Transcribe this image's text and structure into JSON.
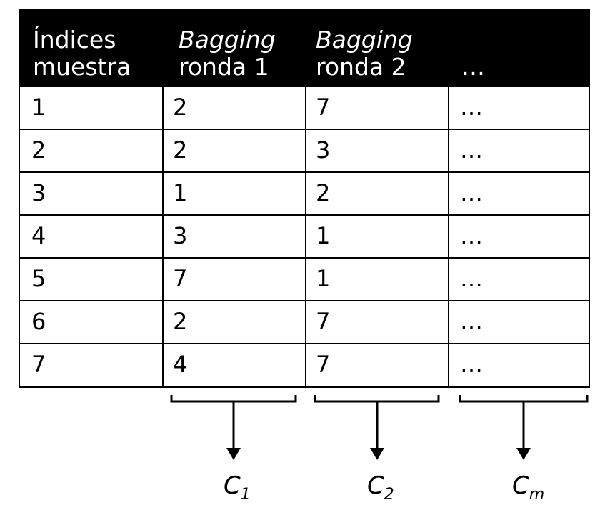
{
  "table": {
    "header": [
      {
        "line1": "Índices",
        "line2": "muestra",
        "italic_line1": false
      },
      {
        "line1": "Bagging",
        "line2": "ronda 1",
        "italic_line1": true
      },
      {
        "line1": "Bagging",
        "line2": "ronda 2",
        "italic_line1": true
      },
      {
        "line1": "",
        "line2": "…",
        "italic_line1": false
      }
    ],
    "rows": [
      [
        "1",
        "2",
        "7",
        "…"
      ],
      [
        "2",
        "2",
        "3",
        "…"
      ],
      [
        "3",
        "1",
        "2",
        "…"
      ],
      [
        "4",
        "3",
        "1",
        "…"
      ],
      [
        "5",
        "7",
        "1",
        "…"
      ],
      [
        "6",
        "2",
        "7",
        "…"
      ],
      [
        "7",
        "4",
        "7",
        "…"
      ]
    ]
  },
  "classifiers": [
    {
      "letter": "C",
      "sub": "1"
    },
    {
      "letter": "C",
      "sub": "2"
    },
    {
      "letter": "C",
      "sub": "m"
    }
  ]
}
